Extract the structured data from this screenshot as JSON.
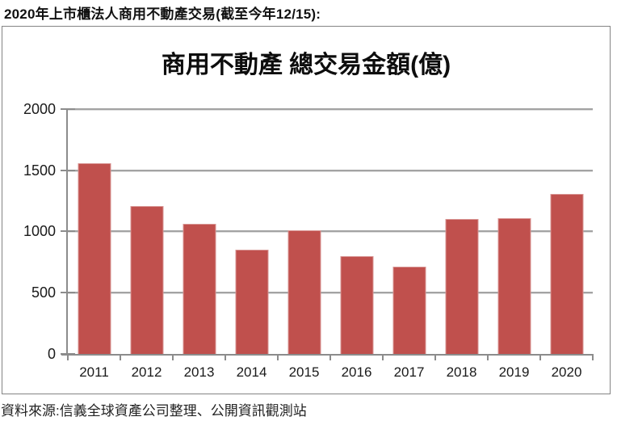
{
  "header": {
    "text": "2020年上市櫃法人商用不動產交易(截至今年12/15):"
  },
  "footer": {
    "source": "資料來源:信義全球資產公司整理、公開資訊觀測站"
  },
  "colors": {
    "bar_fill": "#C0504D",
    "bar_border": "#D99694",
    "gridline": "#A3A3A3",
    "axis": "#8C8C8C",
    "box_border": "#848484",
    "text": "#1A1A1A"
  },
  "chart_data": {
    "type": "bar",
    "title": "商用不動產 總交易金額(億)",
    "categories": [
      "2011",
      "2012",
      "2013",
      "2014",
      "2015",
      "2016",
      "2017",
      "2018",
      "2019",
      "2020"
    ],
    "values": [
      1560,
      1210,
      1060,
      850,
      1010,
      800,
      715,
      1100,
      1110,
      1310
    ],
    "xlabel": "",
    "ylabel": "",
    "ylim": [
      0,
      2000
    ],
    "yticks": [
      0,
      500,
      1000,
      1500,
      2000
    ],
    "grid": "horizontal",
    "legend": "none"
  }
}
